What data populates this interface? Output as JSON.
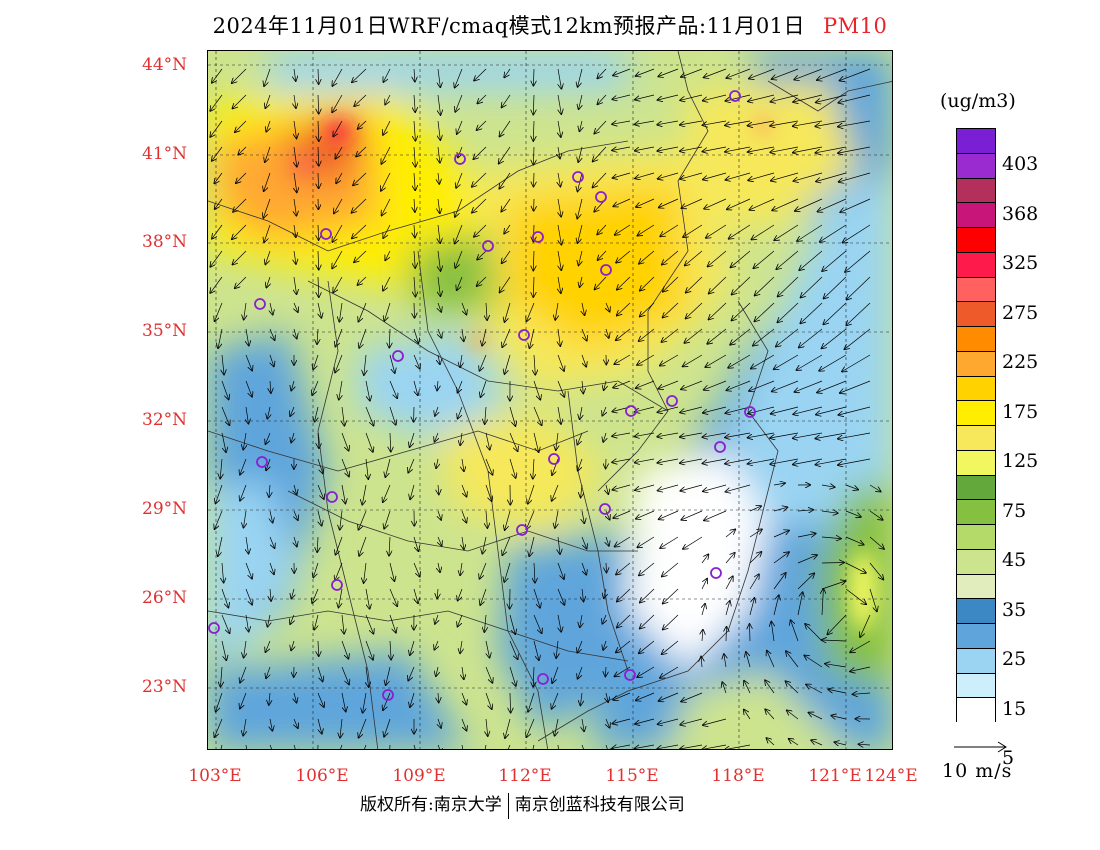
{
  "title": {
    "main": "2024年11月01日WRF/cmaq模式12km预报产品:11月01日",
    "pollutant": "PM10"
  },
  "map": {
    "lat_labels": [
      "44°N",
      "41°N",
      "38°N",
      "35°N",
      "32°N",
      "29°N",
      "26°N",
      "23°N"
    ],
    "lon_labels": [
      "103°E",
      "106°E",
      "109°E",
      "112°E",
      "115°E",
      "118°E",
      "121°E",
      "124°E"
    ]
  },
  "colorbar": {
    "unit": "(ug/m3)",
    "colors": [
      "#7a1fd4",
      "#9a2bd0",
      "#b4305c",
      "#c8157a",
      "#ff0000",
      "#ff1a4c",
      "#ff6060",
      "#ee5a2a",
      "#ff8c00",
      "#ffa830",
      "#ffd200",
      "#ffee00",
      "#f6e85a",
      "#f2f760",
      "#62a83a",
      "#86c040",
      "#b4da6a",
      "#cde48e",
      "#e2edbe",
      "#3c88c4",
      "#5fa5dc",
      "#9ad4f2",
      "#cceffb",
      "#ffffff"
    ],
    "tick_labels": [
      "403",
      "368",
      "325",
      "275",
      "225",
      "175",
      "125",
      "75",
      "45",
      "35",
      "25",
      "15",
      "5"
    ]
  },
  "wind_reference": {
    "label": "10 m/s"
  },
  "footer": {
    "copyright": "版权所有:南京大学",
    "company": "南京创蓝科技有限公司"
  }
}
